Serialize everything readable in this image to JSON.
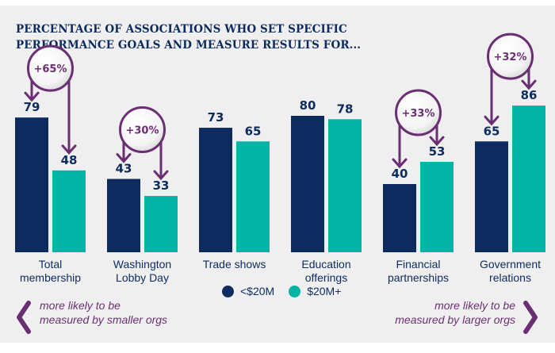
{
  "title": "PERCENTAGE OF ASSOCIATIONS WHO SET SPECIFIC PERFORMANCE GOALS AND MEASURE RESULTS FOR...",
  "colors": {
    "small": "#0d2b5e",
    "large": "#00b5a5",
    "accent": "#6a2f72",
    "background": "#efefef"
  },
  "chart_data": {
    "type": "bar",
    "title": "PERCENTAGE OF ASSOCIATIONS WHO SET SPECIFIC PERFORMANCE GOALS AND MEASURE RESULTS FOR...",
    "categories": [
      [
        "Total",
        "membership"
      ],
      [
        "Washington",
        "Lobby Day"
      ],
      [
        "Trade shows"
      ],
      [
        "Education",
        "offerings"
      ],
      [
        "Financial",
        "partnerships"
      ],
      [
        "Government",
        "relations"
      ]
    ],
    "series": [
      {
        "name": "<$20M",
        "color": "#0d2b5e",
        "values": [
          79,
          43,
          73,
          80,
          40,
          65
        ]
      },
      {
        "name": "$20M+",
        "color": "#00b5a5",
        "values": [
          48,
          33,
          65,
          78,
          53,
          86
        ]
      }
    ],
    "annotations": [
      {
        "category": 0,
        "label": "+65%",
        "direction": "smaller"
      },
      {
        "category": 1,
        "label": "+30%",
        "direction": "smaller"
      },
      {
        "category": 4,
        "label": "+33%",
        "direction": "larger"
      },
      {
        "category": 5,
        "label": "+32%",
        "direction": "larger"
      }
    ],
    "xlabel": "",
    "ylabel": "",
    "ylim": [
      0,
      100
    ],
    "grid": false,
    "legend": "bottom-center"
  },
  "legend": {
    "items": [
      {
        "label": "<$20M"
      },
      {
        "label": "$20M+"
      }
    ]
  },
  "notes": {
    "left": [
      "more likely to be",
      "measured by smaller orgs"
    ],
    "right": [
      "more likely to be",
      "measured by larger orgs"
    ]
  }
}
